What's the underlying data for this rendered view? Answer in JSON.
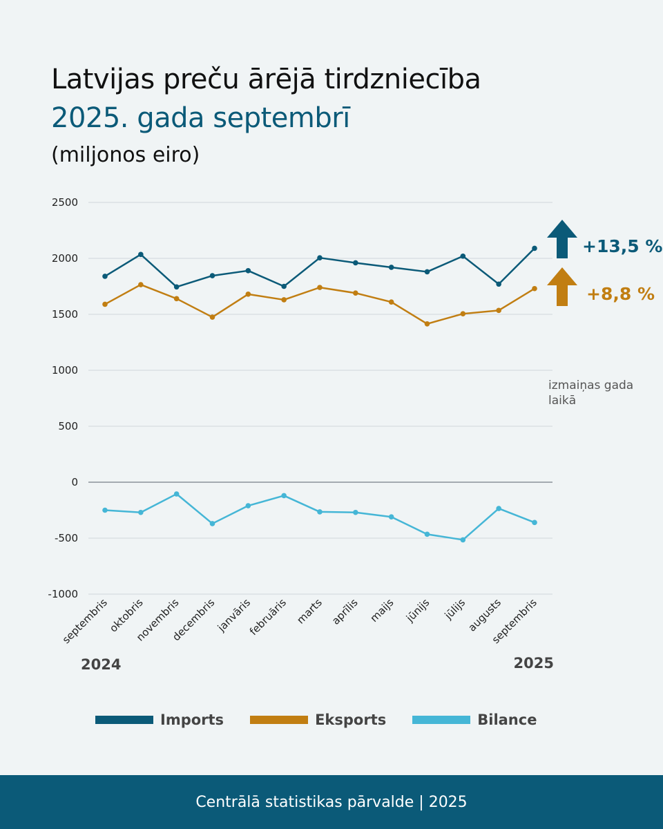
{
  "header": {
    "title": "Latvijas preču ārējā tirdzniecība",
    "subtitle": "2025. gada septembrī",
    "unit": "(miljonos eiro)"
  },
  "chart_data": {
    "type": "line",
    "title": "Latvijas preču ārējā tirdzniecība 2025. gada septembrī",
    "ylabel": "miljonos eiro",
    "ylim": [
      -1000,
      2500
    ],
    "yticks": [
      2500,
      2000,
      1500,
      1000,
      500,
      0,
      -500,
      -1000
    ],
    "grid": true,
    "categories": [
      "septembris",
      "oktobris",
      "novembris",
      "decembris",
      "janvāris",
      "februāris",
      "marts",
      "aprīlis",
      "maijs",
      "jūnijs",
      "jūlijs",
      "augusts",
      "septembris"
    ],
    "year_labels": {
      "start": "2024",
      "end": "2025"
    },
    "series": [
      {
        "name": "Imports",
        "color": "#0b5a78",
        "values": [
          1840,
          2035,
          1745,
          1845,
          1890,
          1750,
          2005,
          1960,
          1920,
          1880,
          2020,
          1770,
          2090
        ]
      },
      {
        "name": "Eksports",
        "color": "#c17e12",
        "values": [
          1590,
          1765,
          1640,
          1475,
          1680,
          1630,
          1740,
          1690,
          1610,
          1415,
          1505,
          1535,
          1730
        ]
      },
      {
        "name": "Bilance",
        "color": "#45b6d6",
        "values": [
          -250,
          -270,
          -105,
          -370,
          -210,
          -120,
          -265,
          -270,
          -310,
          -465,
          -515,
          -235,
          -360
        ]
      }
    ],
    "annotations": [
      {
        "series": "Imports",
        "text": "+13,5 %",
        "direction": "up"
      },
      {
        "series": "Eksports",
        "text": "+8,8 %",
        "direction": "up"
      }
    ],
    "change_note": "izmaiņas gada laikā",
    "legend_position": "bottom"
  },
  "legend": [
    {
      "label": "Imports",
      "color": "#0b5a78"
    },
    {
      "label": "Eksports",
      "color": "#c17e12"
    },
    {
      "label": "Bilance",
      "color": "#45b6d6"
    }
  ],
  "footer": {
    "text": "Centrālā statistikas pārvalde | 2025"
  }
}
